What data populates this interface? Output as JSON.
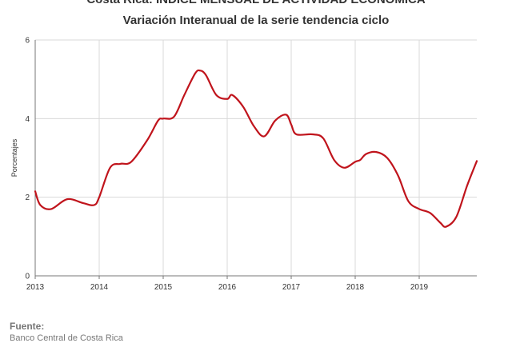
{
  "title": "Costa Rica: INDICE MENSUAL DE ACTIVIDAD ECONOMICA",
  "subtitle": "Variación Interanual de la serie tendencia ciclo",
  "footer": {
    "label": "Fuente:",
    "source": "Banco Central de Costa Rica"
  },
  "colors": {
    "series": "#c0141c",
    "grid": "#d9d9d9",
    "axis": "#777777"
  },
  "chart_data": {
    "type": "line",
    "title": "Costa Rica: INDICE MENSUAL DE ACTIVIDAD ECONOMICA",
    "subtitle": "Variación Interanual de la serie tendencia ciclo",
    "xlabel": "",
    "ylabel": "Porcentajes",
    "xlim": [
      2013.0,
      2019.9
    ],
    "ylim": [
      0,
      6
    ],
    "yticks": [
      0,
      2,
      4,
      6
    ],
    "xticks": [
      "2013",
      "2014",
      "2015",
      "2016",
      "2017",
      "2018",
      "2019"
    ],
    "grid": true,
    "legend": "none",
    "series": [
      {
        "values": [
          [
            2013.0,
            2.15
          ],
          [
            2013.08,
            1.8
          ],
          [
            2013.25,
            1.7
          ],
          [
            2013.5,
            1.95
          ],
          [
            2013.75,
            1.85
          ],
          [
            2013.92,
            1.8
          ],
          [
            2014.0,
            2.0
          ],
          [
            2014.17,
            2.75
          ],
          [
            2014.33,
            2.85
          ],
          [
            2014.5,
            2.9
          ],
          [
            2014.75,
            3.45
          ],
          [
            2014.92,
            3.95
          ],
          [
            2015.0,
            4.0
          ],
          [
            2015.17,
            4.05
          ],
          [
            2015.33,
            4.6
          ],
          [
            2015.5,
            5.15
          ],
          [
            2015.58,
            5.22
          ],
          [
            2015.67,
            5.1
          ],
          [
            2015.83,
            4.6
          ],
          [
            2016.0,
            4.5
          ],
          [
            2016.08,
            4.6
          ],
          [
            2016.25,
            4.3
          ],
          [
            2016.42,
            3.8
          ],
          [
            2016.58,
            3.55
          ],
          [
            2016.75,
            3.95
          ],
          [
            2016.92,
            4.1
          ],
          [
            2017.0,
            3.85
          ],
          [
            2017.08,
            3.6
          ],
          [
            2017.33,
            3.6
          ],
          [
            2017.5,
            3.5
          ],
          [
            2017.67,
            2.95
          ],
          [
            2017.83,
            2.75
          ],
          [
            2018.0,
            2.9
          ],
          [
            2018.08,
            2.95
          ],
          [
            2018.17,
            3.1
          ],
          [
            2018.33,
            3.15
          ],
          [
            2018.5,
            3.0
          ],
          [
            2018.67,
            2.55
          ],
          [
            2018.83,
            1.9
          ],
          [
            2019.0,
            1.7
          ],
          [
            2019.17,
            1.6
          ],
          [
            2019.33,
            1.35
          ],
          [
            2019.42,
            1.25
          ],
          [
            2019.58,
            1.5
          ],
          [
            2019.75,
            2.3
          ],
          [
            2019.9,
            2.92
          ]
        ]
      }
    ]
  }
}
